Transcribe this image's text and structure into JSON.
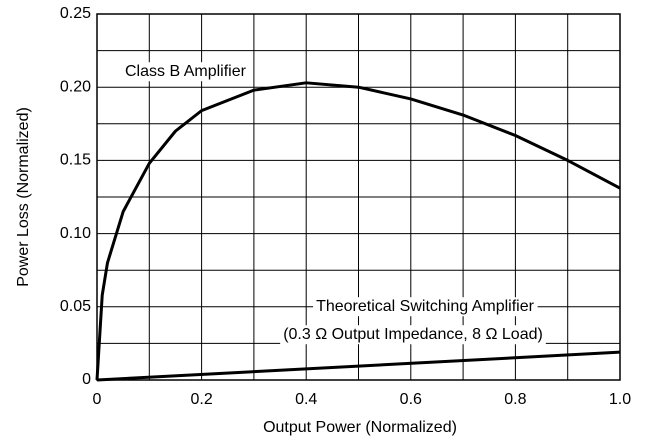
{
  "chart_data": {
    "type": "line",
    "xlabel": "Output Power (Normalized)",
    "ylabel": "Power Loss (Normalized)",
    "xlim": [
      0,
      1
    ],
    "xticks": [
      0,
      0.2,
      0.4,
      0.6,
      0.8,
      {
        "value": 1,
        "label": "1.0"
      }
    ],
    "ylim": [
      0,
      0.25
    ],
    "yticks": [
      0,
      0.05,
      {
        "value": 0.1,
        "label": "0.10"
      },
      0.15,
      {
        "value": 0.2,
        "label": "0.20"
      },
      0.25
    ],
    "grid": true,
    "annotations": [
      "Class B Amplifier",
      "Theoretical Switching Amplifier",
      "(0.3 Ω Output Impedance, 8 Ω Load)"
    ],
    "series": [
      {
        "name": "Class B Amplifier",
        "color": "#000000",
        "x": [
          0,
          0.01,
          0.02,
          0.05,
          0.1,
          0.15,
          0.2,
          0.3,
          0.4,
          0.5,
          0.6,
          0.7,
          0.8,
          0.9,
          1
        ],
        "values": [
          0,
          0.058,
          0.08,
          0.115,
          0.148,
          0.17,
          0.184,
          0.198,
          0.203,
          0.2,
          0.192,
          0.181,
          0.167,
          0.15,
          0.131
        ]
      },
      {
        "name": "Theoretical Switching Amplifier",
        "color": "#000000",
        "x": [
          0,
          1
        ],
        "values": [
          0,
          0.019
        ]
      }
    ]
  }
}
